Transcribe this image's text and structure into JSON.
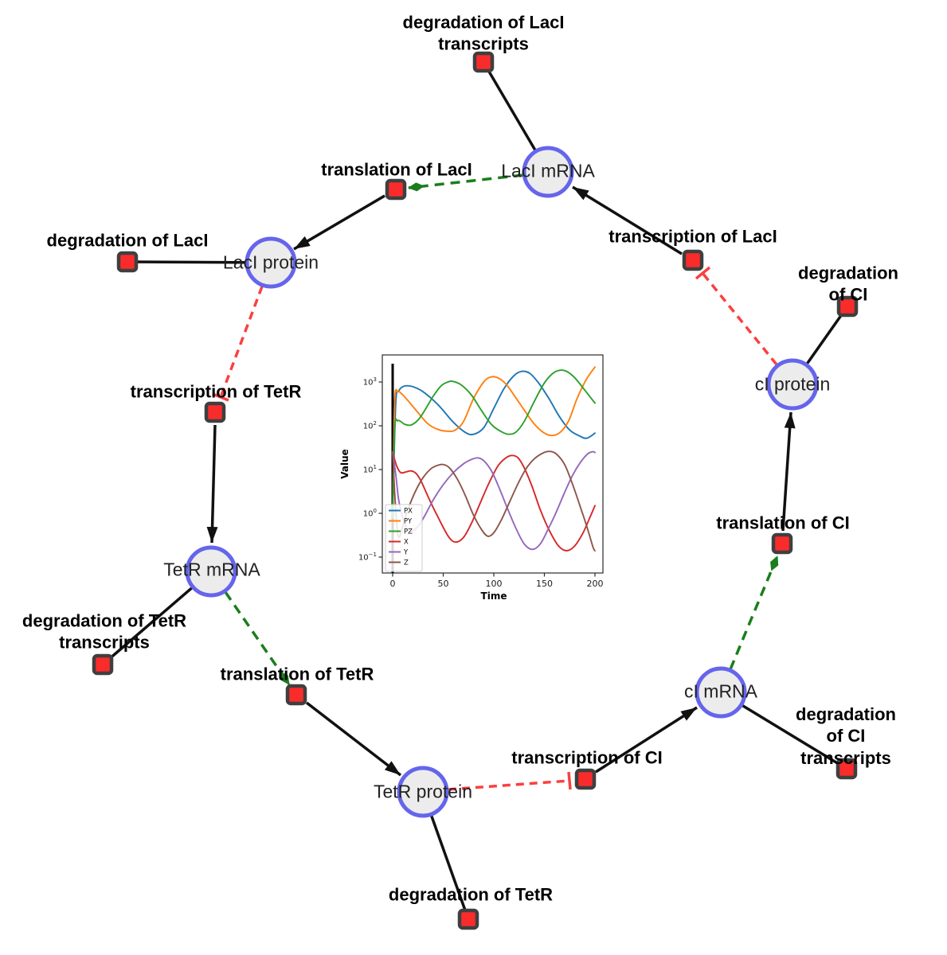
{
  "figure": {
    "description_labels": {
      "species": [
        {
          "label": "LacI mRNA"
        },
        {
          "label": "LacI protein"
        },
        {
          "label": "TetR mRNA"
        },
        {
          "label": "TetR protein"
        },
        {
          "label": "cI mRNA"
        },
        {
          "label": "cI protein"
        }
      ],
      "reactions": [
        {
          "label": "degradation of LacI\ntranscripts"
        },
        {
          "label": "translation of LacI"
        },
        {
          "label": "degradation of LacI"
        },
        {
          "label": "transcription of LacI"
        },
        {
          "label": "degradation of CI"
        },
        {
          "label": "transcription of TetR"
        },
        {
          "label": "translation of CI"
        },
        {
          "label": "degradation of TetR\ntranscripts"
        },
        {
          "label": "translation of TetR"
        },
        {
          "label": "degradation of CI\ntranscripts"
        },
        {
          "label": "transcription of CI"
        },
        {
          "label": "degradation of TetR"
        }
      ]
    },
    "colors": {
      "species_node_fill": "#ececec",
      "species_node_border": "#6565ec",
      "reaction_node_fill": "#fa2b2b",
      "reaction_node_border": "#3f3f3f",
      "kinetic_edge": "#111111",
      "modifier_edge": "#1b7e1b",
      "inhibition_edge": "#fb4040"
    }
  },
  "chart_data": {
    "type": "line",
    "title": "",
    "xlabel": "Time",
    "ylabel": "Value",
    "y_axis_scale": "log",
    "x_ticks": [
      0,
      50,
      100,
      150,
      200
    ],
    "y_tick_exponents": [
      -1,
      0,
      1,
      2,
      3
    ],
    "xlim": [
      -10,
      208
    ],
    "ylog_lim": [
      -1.36,
      3.62
    ],
    "grid": false,
    "legend_position": "lower left",
    "event_line_x": 0,
    "series": [
      {
        "name": "PX",
        "color": "#1f77b4",
        "points": [
          [
            0,
            0.8
          ],
          [
            3,
            300
          ],
          [
            6,
            620
          ],
          [
            10,
            780
          ],
          [
            14,
            820
          ],
          [
            20,
            780
          ],
          [
            30,
            600
          ],
          [
            45,
            300
          ],
          [
            60,
            120
          ],
          [
            72,
            70
          ],
          [
            80,
            64
          ],
          [
            90,
            90
          ],
          [
            100,
            250
          ],
          [
            110,
            700
          ],
          [
            120,
            1400
          ],
          [
            128,
            1750
          ],
          [
            136,
            1550
          ],
          [
            145,
            900
          ],
          [
            155,
            400
          ],
          [
            165,
            160
          ],
          [
            175,
            80
          ],
          [
            185,
            58
          ],
          [
            192,
            52
          ],
          [
            200,
            68
          ]
        ]
      },
      {
        "name": "PY",
        "color": "#ff7f0e",
        "points": [
          [
            0,
            0.8
          ],
          [
            2,
            350
          ],
          [
            5,
            600
          ],
          [
            8,
            560
          ],
          [
            15,
            380
          ],
          [
            25,
            200
          ],
          [
            35,
            110
          ],
          [
            45,
            82
          ],
          [
            55,
            75
          ],
          [
            62,
            80
          ],
          [
            70,
            125
          ],
          [
            80,
            420
          ],
          [
            90,
            1000
          ],
          [
            97,
            1300
          ],
          [
            104,
            1250
          ],
          [
            112,
            900
          ],
          [
            120,
            500
          ],
          [
            130,
            230
          ],
          [
            140,
            110
          ],
          [
            150,
            68
          ],
          [
            158,
            60
          ],
          [
            166,
            72
          ],
          [
            174,
            130
          ],
          [
            182,
            400
          ],
          [
            191,
            1100
          ],
          [
            200,
            2200
          ]
        ]
      },
      {
        "name": "PZ",
        "color": "#2ca02c",
        "points": [
          [
            0,
            0.8
          ],
          [
            2,
            85
          ],
          [
            5,
            130
          ],
          [
            8,
            125
          ],
          [
            12,
            108
          ],
          [
            18,
            104
          ],
          [
            25,
            135
          ],
          [
            32,
            230
          ],
          [
            40,
            470
          ],
          [
            48,
            820
          ],
          [
            55,
            1010
          ],
          [
            60,
            1030
          ],
          [
            68,
            850
          ],
          [
            78,
            500
          ],
          [
            88,
            220
          ],
          [
            98,
            105
          ],
          [
            108,
            72
          ],
          [
            115,
            64
          ],
          [
            122,
            72
          ],
          [
            130,
            125
          ],
          [
            140,
            360
          ],
          [
            150,
            950
          ],
          [
            158,
            1550
          ],
          [
            165,
            1850
          ],
          [
            172,
            1750
          ],
          [
            180,
            1250
          ],
          [
            190,
            650
          ],
          [
            200,
            330
          ]
        ]
      },
      {
        "name": "X",
        "color": "#d62728",
        "points": [
          [
            0,
            25
          ],
          [
            4,
            12
          ],
          [
            8,
            8.5
          ],
          [
            13,
            8.8
          ],
          [
            18,
            9.3
          ],
          [
            23,
            8.2
          ],
          [
            28,
            5.5
          ],
          [
            35,
            2.4
          ],
          [
            45,
            0.8
          ],
          [
            55,
            0.3
          ],
          [
            62,
            0.22
          ],
          [
            70,
            0.28
          ],
          [
            78,
            0.6
          ],
          [
            86,
            1.6
          ],
          [
            95,
            4.8
          ],
          [
            104,
            12
          ],
          [
            112,
            18.5
          ],
          [
            118,
            21
          ],
          [
            124,
            18.5
          ],
          [
            130,
            11
          ],
          [
            138,
            4
          ],
          [
            146,
            1.2
          ],
          [
            155,
            0.4
          ],
          [
            164,
            0.18
          ],
          [
            172,
            0.14
          ],
          [
            180,
            0.18
          ],
          [
            188,
            0.35
          ],
          [
            195,
            0.8
          ],
          [
            200,
            1.5
          ]
        ]
      },
      {
        "name": "Y",
        "color": "#9467bd",
        "points": [
          [
            0,
            25
          ],
          [
            3,
            8
          ],
          [
            6,
            2
          ],
          [
            10,
            0.8
          ],
          [
            14,
            0.45
          ],
          [
            18,
            0.38
          ],
          [
            25,
            0.5
          ],
          [
            32,
            0.9
          ],
          [
            40,
            2
          ],
          [
            50,
            4.5
          ],
          [
            60,
            8.5
          ],
          [
            70,
            13.5
          ],
          [
            78,
            17
          ],
          [
            84,
            18.5
          ],
          [
            90,
            16
          ],
          [
            98,
            9
          ],
          [
            106,
            3.5
          ],
          [
            114,
            1.2
          ],
          [
            122,
            0.45
          ],
          [
            130,
            0.2
          ],
          [
            138,
            0.15
          ],
          [
            146,
            0.2
          ],
          [
            154,
            0.45
          ],
          [
            162,
            1.1
          ],
          [
            170,
            3
          ],
          [
            178,
            7.5
          ],
          [
            186,
            15
          ],
          [
            193,
            23
          ],
          [
            198,
            25.5
          ],
          [
            200,
            24.5
          ]
        ]
      },
      {
        "name": "Z",
        "color": "#8c564b",
        "points": [
          [
            0,
            25
          ],
          [
            2,
            3
          ],
          [
            4,
            0.6
          ],
          [
            6,
            0.28
          ],
          [
            10,
            0.5
          ],
          [
            15,
            1.2
          ],
          [
            22,
            3
          ],
          [
            30,
            6.5
          ],
          [
            38,
            10.5
          ],
          [
            45,
            12.6
          ],
          [
            50,
            13
          ],
          [
            56,
            11
          ],
          [
            64,
            6
          ],
          [
            72,
            2.5
          ],
          [
            80,
            0.9
          ],
          [
            88,
            0.42
          ],
          [
            94,
            0.3
          ],
          [
            100,
            0.36
          ],
          [
            108,
            0.75
          ],
          [
            116,
            1.9
          ],
          [
            124,
            4.8
          ],
          [
            132,
            10.5
          ],
          [
            140,
            17.5
          ],
          [
            148,
            23.5
          ],
          [
            155,
            26
          ],
          [
            162,
            22.5
          ],
          [
            170,
            13
          ],
          [
            178,
            4.5
          ],
          [
            186,
            1.3
          ],
          [
            192,
            0.5
          ],
          [
            198,
            0.17
          ],
          [
            200,
            0.14
          ]
        ]
      }
    ]
  }
}
